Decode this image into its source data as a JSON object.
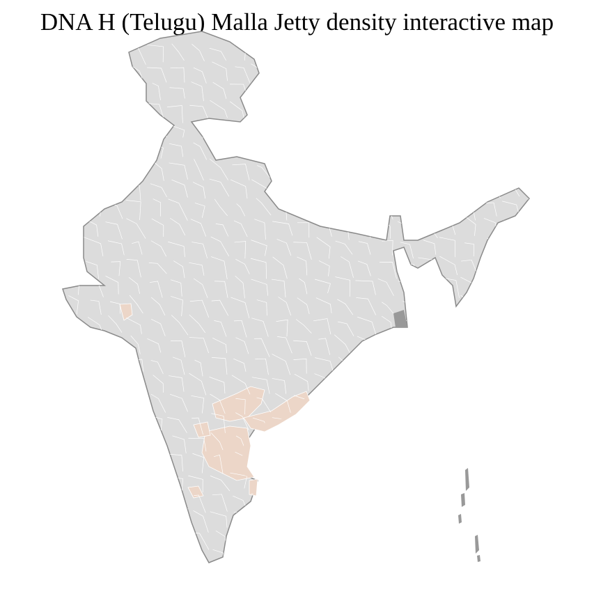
{
  "title": "DNA H (Telugu) Malla Jetty density interactive map",
  "colors": {
    "base_fill": "#dcdcdc",
    "state_border": "#8a8a8a",
    "district_border": "#ffffff",
    "highlight_fill": "#ecd6c8"
  },
  "map": {
    "country": "India",
    "highlighted_regions": [
      "Telangana",
      "Andhra Pradesh coastal districts",
      "Rayalaseema",
      "Gujarat district",
      "Karnataka district"
    ]
  }
}
